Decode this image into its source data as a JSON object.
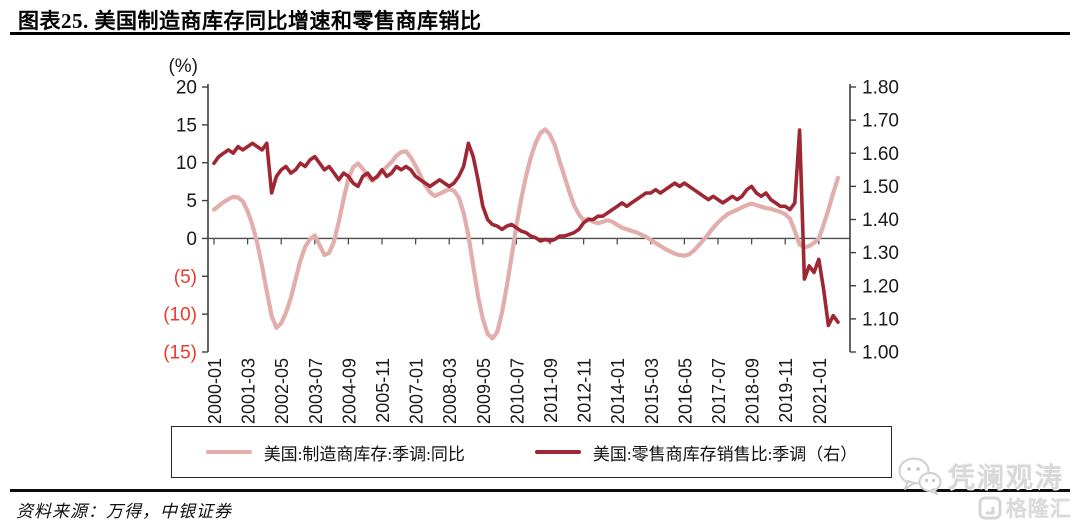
{
  "header": {
    "title": "图表25. 美国制造商库存同比增速和零售商库销比"
  },
  "chart_data": {
    "type": "line",
    "title": "美国制造商库存同比增速和零售商库销比",
    "legend_position": "bottom",
    "grid": false,
    "left_axis": {
      "unit_label": "(%)",
      "tick_labels": [
        "20",
        "15",
        "10",
        "5",
        "0",
        "(5)",
        "(10)",
        "(15)"
      ],
      "tick_values": [
        20,
        15,
        10,
        5,
        0,
        -5,
        -10,
        -15
      ],
      "min": -15,
      "max": 20,
      "negative_label_color": "#eb3a2e",
      "positive_label_color": "#1a1a1a"
    },
    "right_axis": {
      "tick_labels": [
        "1.80",
        "1.70",
        "1.60",
        "1.50",
        "1.40",
        "1.30",
        "1.20",
        "1.10",
        "1.00"
      ],
      "tick_values": [
        1.8,
        1.7,
        1.6,
        1.5,
        1.4,
        1.3,
        1.2,
        1.1,
        1.0
      ],
      "min": 1.0,
      "max": 1.8
    },
    "x_axis": {
      "tick_labels": [
        "2000-01",
        "2001-03",
        "2002-05",
        "2003-07",
        "2004-09",
        "2005-11",
        "2007-01",
        "2008-03",
        "2009-05",
        "2010-07",
        "2011-09",
        "2012-11",
        "2014-01",
        "2015-03",
        "2016-05",
        "2017-07",
        "2018-09",
        "2019-11",
        "2021-01"
      ],
      "tick_step_months": 14,
      "points_start": "2000-01",
      "points_step_months": 2
    },
    "series": [
      {
        "name": "美国:制造商库存:季调:同比",
        "axis": "left",
        "color": "#e2aeac",
        "values": [
          3.8,
          4.3,
          4.8,
          5.2,
          5.5,
          5.4,
          4.9,
          3.6,
          1.8,
          -0.6,
          -3.6,
          -7.0,
          -10.2,
          -11.8,
          -11.2,
          -9.8,
          -7.9,
          -5.4,
          -2.9,
          -1.1,
          -0.1,
          0.4,
          -0.9,
          -2.2,
          -1.9,
          -0.4,
          2.2,
          5.2,
          7.9,
          9.4,
          9.9,
          9.2,
          8.2,
          7.6,
          8.1,
          8.8,
          9.5,
          10.1,
          10.9,
          11.4,
          11.5,
          10.7,
          9.6,
          8.3,
          7.0,
          6.1,
          5.6,
          5.9,
          6.2,
          6.5,
          6.3,
          5.4,
          3.4,
          0.4,
          -3.6,
          -7.6,
          -10.6,
          -12.6,
          -13.2,
          -12.4,
          -9.8,
          -6.3,
          -2.4,
          1.7,
          5.2,
          8.2,
          10.7,
          12.6,
          13.9,
          14.4,
          13.7,
          12.3,
          10.2,
          8.2,
          6.2,
          4.4,
          3.2,
          2.4,
          2.6,
          2.2,
          2.0,
          2.2,
          2.4,
          2.2,
          1.8,
          1.4,
          1.2,
          1.0,
          0.8,
          0.5,
          0.2,
          -0.2,
          -0.6,
          -1.0,
          -1.4,
          -1.7,
          -2.0,
          -2.2,
          -2.3,
          -2.1,
          -1.6,
          -0.9,
          -0.2,
          0.6,
          1.4,
          2.1,
          2.7,
          3.2,
          3.5,
          3.8,
          4.1,
          4.4,
          4.6,
          4.4,
          4.2,
          4.0,
          3.9,
          3.7,
          3.5,
          3.2,
          2.6,
          1.0,
          -0.8,
          -1.2,
          -1.0,
          -0.6,
          0.0,
          1.8,
          3.8,
          6.0,
          8.0
        ]
      },
      {
        "name": "美国:零售商库存销售比:季调（右）",
        "axis": "right",
        "color": "#9f2733",
        "values": [
          1.57,
          1.59,
          1.6,
          1.61,
          1.6,
          1.62,
          1.61,
          1.62,
          1.63,
          1.62,
          1.61,
          1.63,
          1.48,
          1.53,
          1.55,
          1.56,
          1.54,
          1.55,
          1.57,
          1.56,
          1.58,
          1.59,
          1.57,
          1.55,
          1.56,
          1.54,
          1.52,
          1.54,
          1.53,
          1.51,
          1.5,
          1.53,
          1.54,
          1.52,
          1.53,
          1.55,
          1.53,
          1.54,
          1.56,
          1.55,
          1.56,
          1.55,
          1.53,
          1.52,
          1.51,
          1.5,
          1.51,
          1.52,
          1.51,
          1.5,
          1.51,
          1.53,
          1.56,
          1.63,
          1.59,
          1.52,
          1.44,
          1.4,
          1.385,
          1.38,
          1.37,
          1.38,
          1.385,
          1.375,
          1.365,
          1.36,
          1.35,
          1.345,
          1.335,
          1.34,
          1.335,
          1.34,
          1.35,
          1.35,
          1.355,
          1.36,
          1.37,
          1.39,
          1.4,
          1.4,
          1.41,
          1.41,
          1.42,
          1.43,
          1.44,
          1.45,
          1.44,
          1.45,
          1.46,
          1.47,
          1.48,
          1.48,
          1.49,
          1.48,
          1.49,
          1.5,
          1.51,
          1.5,
          1.51,
          1.5,
          1.49,
          1.48,
          1.47,
          1.46,
          1.47,
          1.46,
          1.45,
          1.46,
          1.47,
          1.46,
          1.47,
          1.49,
          1.5,
          1.48,
          1.47,
          1.48,
          1.46,
          1.45,
          1.44,
          1.44,
          1.43,
          1.45,
          1.67,
          1.22,
          1.26,
          1.24,
          1.28,
          1.19,
          1.08,
          1.11,
          1.09
        ]
      }
    ]
  },
  "footer": {
    "source_text": "资料来源：万得，中银证券"
  },
  "watermark": {
    "wechat_name": "凭澜观涛",
    "logo_text": "格隆汇"
  },
  "colors": {
    "axis_line": "#3f3f3f",
    "tick_text": "#1a1a1a",
    "title_rule": "#000000"
  }
}
